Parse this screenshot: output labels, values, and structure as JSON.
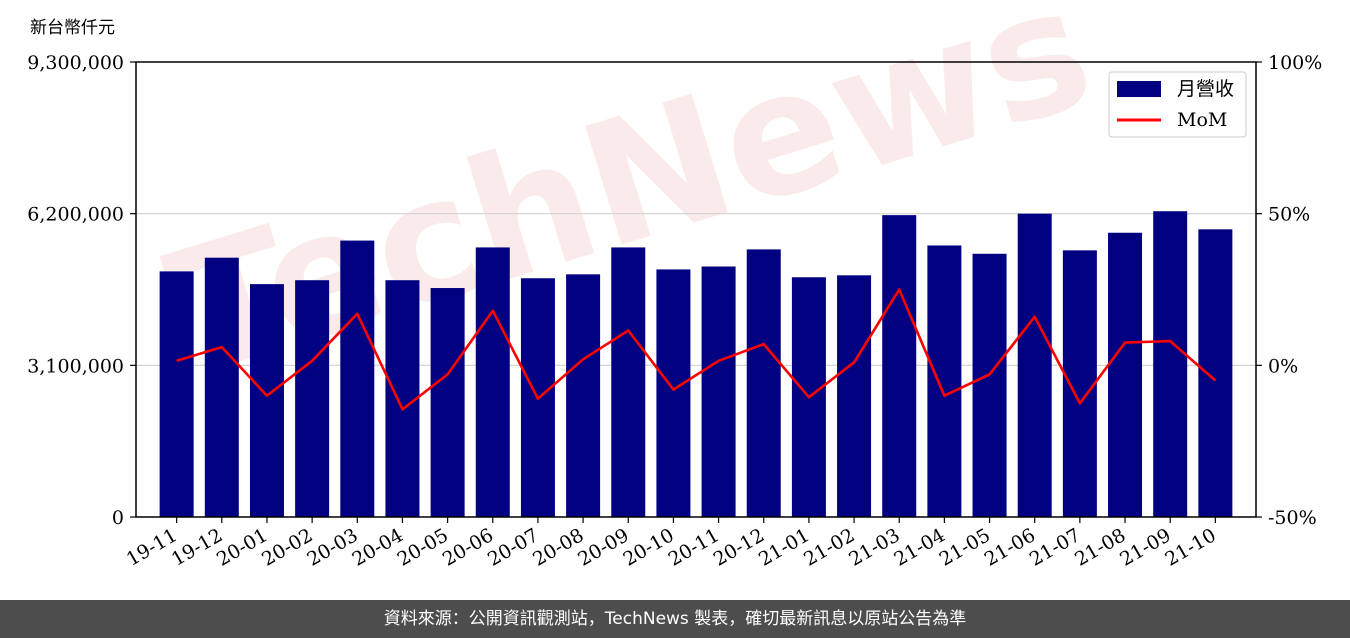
{
  "chart_data": {
    "type": "bar",
    "left_axis_unit": "新台幣仟元",
    "categories": [
      "19-11",
      "19-12",
      "20-01",
      "20-02",
      "20-03",
      "20-04",
      "20-05",
      "20-06",
      "20-07",
      "20-08",
      "20-09",
      "20-10",
      "20-11",
      "20-12",
      "21-01",
      "21-02",
      "21-03",
      "21-04",
      "21-05",
      "21-06",
      "21-07",
      "21-08",
      "21-09",
      "21-10"
    ],
    "series": [
      {
        "name": "月營收",
        "type": "bar",
        "axis": "left",
        "color": "#000080",
        "values": [
          5020000,
          5300000,
          4760000,
          4840000,
          5650000,
          4840000,
          4680000,
          5510000,
          4880000,
          4960000,
          5510000,
          5060000,
          5120000,
          5470000,
          4900000,
          4940000,
          6170000,
          5550000,
          5380000,
          6200000,
          5450000,
          5810000,
          6250000,
          5880000
        ]
      },
      {
        "name": "MoM",
        "type": "line",
        "axis": "right",
        "color": "#ff0000",
        "values": [
          1.5,
          6,
          -10,
          1.5,
          17,
          -14.5,
          -3,
          18,
          -11,
          2,
          11.5,
          -8,
          1.5,
          7,
          -10.5,
          1,
          25,
          -10,
          -3,
          16,
          -12.5,
          7.5,
          8,
          -5
        ]
      }
    ],
    "yleft": {
      "range": [
        0,
        9300000
      ],
      "ticks": [
        0,
        3100000,
        6200000,
        9300000
      ],
      "tick_labels": [
        "0",
        "3,100,000",
        "6,200,000",
        "9,300,000"
      ]
    },
    "yright": {
      "range": [
        -50,
        100
      ],
      "ticks": [
        -50,
        0,
        50,
        100
      ],
      "tick_labels": [
        "-50%",
        "0%",
        "50%",
        "100%"
      ]
    },
    "grid": "horizontal",
    "legend_position": "top-right"
  },
  "watermark": "TechNews",
  "footer": "資料來源：公開資訊觀測站，TechNews 製表，確切最新訊息以原站公告為準"
}
